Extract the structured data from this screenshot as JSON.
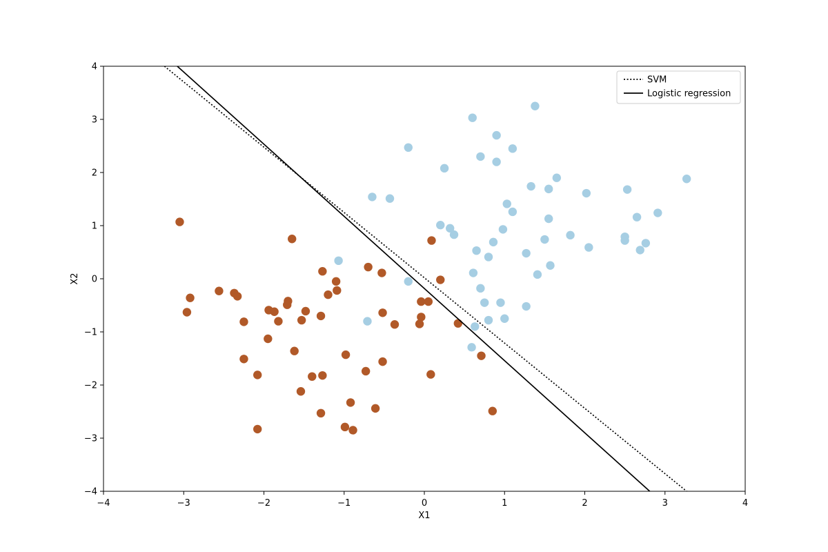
{
  "chart_data": {
    "type": "scatter",
    "title": "",
    "xlabel": "X1",
    "ylabel": "X2",
    "xlim": [
      -4,
      4
    ],
    "ylim": [
      -4,
      4
    ],
    "xticks": [
      -4,
      -3,
      -2,
      -1,
      0,
      1,
      2,
      3,
      4
    ],
    "yticks": [
      -4,
      -3,
      -2,
      -1,
      0,
      1,
      2,
      3,
      4
    ],
    "grid": false,
    "legend_position": "top-right",
    "series": [
      {
        "kind": "points",
        "color": "#a6cee3",
        "points": [
          [
            0.6,
            3.03
          ],
          [
            1.38,
            3.25
          ],
          [
            0.9,
            2.7
          ],
          [
            -0.2,
            2.47
          ],
          [
            1.1,
            2.45
          ],
          [
            0.7,
            2.3
          ],
          [
            0.9,
            2.2
          ],
          [
            0.25,
            2.08
          ],
          [
            1.65,
            1.9
          ],
          [
            1.33,
            1.74
          ],
          [
            1.55,
            1.69
          ],
          [
            2.02,
            1.61
          ],
          [
            2.53,
            1.68
          ],
          [
            3.27,
            1.88
          ],
          [
            -0.65,
            1.54
          ],
          [
            -0.43,
            1.51
          ],
          [
            1.03,
            1.41
          ],
          [
            1.1,
            1.26
          ],
          [
            2.91,
            1.24
          ],
          [
            2.65,
            1.16
          ],
          [
            1.55,
            1.13
          ],
          [
            0.2,
            1.01
          ],
          [
            0.32,
            0.95
          ],
          [
            0.98,
            0.93
          ],
          [
            0.37,
            0.83
          ],
          [
            1.82,
            0.82
          ],
          [
            2.5,
            0.79
          ],
          [
            1.5,
            0.74
          ],
          [
            2.5,
            0.72
          ],
          [
            0.86,
            0.69
          ],
          [
            2.76,
            0.67
          ],
          [
            2.05,
            0.59
          ],
          [
            2.69,
            0.54
          ],
          [
            0.65,
            0.53
          ],
          [
            1.27,
            0.48
          ],
          [
            0.8,
            0.41
          ],
          [
            -1.07,
            0.34
          ],
          [
            1.57,
            0.25
          ],
          [
            0.61,
            0.11
          ],
          [
            1.41,
            0.08
          ],
          [
            -0.2,
            -0.05
          ],
          [
            0.7,
            -0.18
          ],
          [
            0.75,
            -0.45
          ],
          [
            0.95,
            -0.45
          ],
          [
            1.27,
            -0.52
          ],
          [
            1.0,
            -0.75
          ],
          [
            0.8,
            -0.78
          ],
          [
            -0.71,
            -0.8
          ],
          [
            0.63,
            -0.9
          ],
          [
            0.59,
            -1.29
          ]
        ]
      },
      {
        "kind": "points",
        "color": "#b15928",
        "points": [
          [
            -3.05,
            1.07
          ],
          [
            -1.65,
            0.75
          ],
          [
            0.09,
            0.72
          ],
          [
            -0.7,
            0.22
          ],
          [
            -1.27,
            0.14
          ],
          [
            -0.53,
            0.11
          ],
          [
            0.2,
            -0.02
          ],
          [
            -1.1,
            -0.05
          ],
          [
            -1.09,
            -0.22
          ],
          [
            -2.56,
            -0.23
          ],
          [
            -2.37,
            -0.27
          ],
          [
            -2.33,
            -0.33
          ],
          [
            -1.2,
            -0.3
          ],
          [
            -2.92,
            -0.36
          ],
          [
            -1.7,
            -0.42
          ],
          [
            -1.71,
            -0.49
          ],
          [
            -0.04,
            -0.43
          ],
          [
            0.05,
            -0.43
          ],
          [
            -1.94,
            -0.59
          ],
          [
            -1.87,
            -0.62
          ],
          [
            -1.48,
            -0.61
          ],
          [
            -2.96,
            -0.63
          ],
          [
            -0.52,
            -0.64
          ],
          [
            -1.29,
            -0.7
          ],
          [
            -0.04,
            -0.72
          ],
          [
            -2.25,
            -0.81
          ],
          [
            -1.82,
            -0.8
          ],
          [
            -1.53,
            -0.78
          ],
          [
            -0.06,
            -0.85
          ],
          [
            -0.37,
            -0.86
          ],
          [
            0.42,
            -0.84
          ],
          [
            -1.95,
            -1.13
          ],
          [
            -1.62,
            -1.36
          ],
          [
            -0.98,
            -1.43
          ],
          [
            0.71,
            -1.45
          ],
          [
            -2.25,
            -1.51
          ],
          [
            -0.52,
            -1.56
          ],
          [
            -0.73,
            -1.74
          ],
          [
            -2.08,
            -1.81
          ],
          [
            -1.4,
            -1.84
          ],
          [
            -1.27,
            -1.82
          ],
          [
            0.08,
            -1.8
          ],
          [
            -1.54,
            -2.12
          ],
          [
            -0.92,
            -2.33
          ],
          [
            -0.61,
            -2.44
          ],
          [
            -1.29,
            -2.53
          ],
          [
            0.85,
            -2.49
          ],
          [
            -0.99,
            -2.79
          ],
          [
            -2.08,
            -2.83
          ],
          [
            -0.89,
            -2.85
          ]
        ]
      },
      {
        "kind": "line",
        "name": "SVM",
        "color": "#000000",
        "dash": "dotted",
        "points": [
          [
            -3.24,
            4.0
          ],
          [
            3.27,
            -4.0
          ]
        ]
      },
      {
        "kind": "line",
        "name": "Logistic regression",
        "color": "#000000",
        "dash": "solid",
        "points": [
          [
            -3.08,
            4.0
          ],
          [
            2.81,
            -4.0
          ]
        ]
      }
    ]
  }
}
